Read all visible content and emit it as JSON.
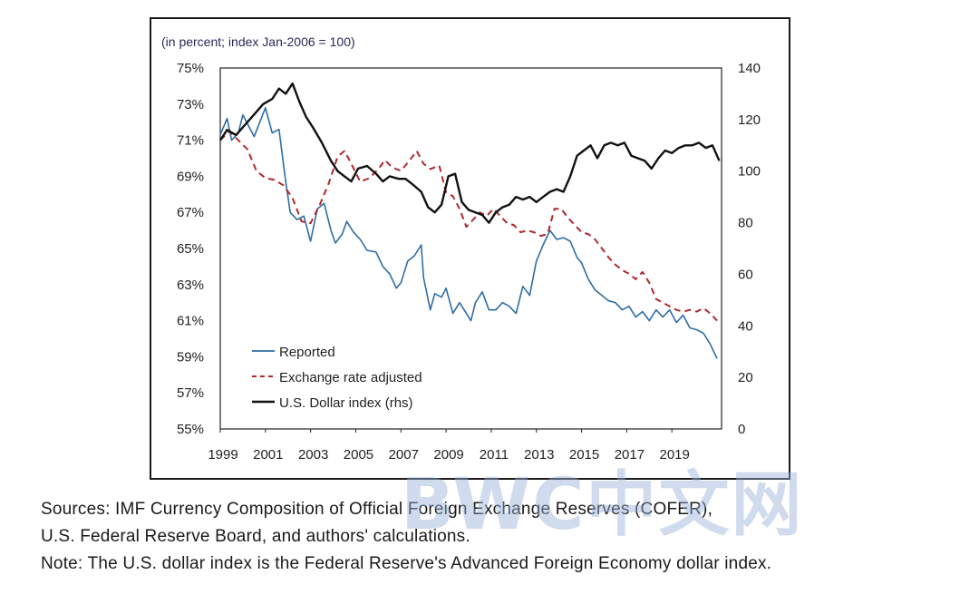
{
  "chart_data": {
    "type": "line",
    "unit_label": "(in percent; index Jan-2006 = 100)",
    "x_ticks": [
      "1999",
      "2001",
      "2003",
      "2005",
      "2007",
      "2009",
      "2011",
      "2013",
      "2015",
      "2017",
      "2019"
    ],
    "xlim": [
      1999,
      2021.2
    ],
    "left_axis": {
      "ticks": [
        "75%",
        "73%",
        "71%",
        "69%",
        "67%",
        "65%",
        "63%",
        "61%",
        "59%",
        "57%",
        "55%"
      ],
      "ylim": [
        55,
        75
      ]
    },
    "right_axis": {
      "ticks": [
        "140",
        "120",
        "100",
        "80",
        "60",
        "40",
        "20",
        "0"
      ],
      "ylim": [
        0,
        140
      ]
    },
    "series": [
      {
        "name": "Reported",
        "axis": "left",
        "color": "#2e6da4",
        "dash": "",
        "x": [
          1999.0,
          1999.3,
          1999.5,
          1999.8,
          2000.0,
          2000.5,
          2001.0,
          2001.3,
          2001.6,
          2001.9,
          2002.1,
          2002.4,
          2002.7,
          2003.0,
          2003.3,
          2003.6,
          2003.9,
          2004.1,
          2004.4,
          2004.6,
          2004.9,
          2005.2,
          2005.5,
          2005.9,
          2006.2,
          2006.5,
          2006.8,
          2007.0,
          2007.3,
          2007.6,
          2007.9,
          2008.0,
          2008.3,
          2008.5,
          2008.8,
          2009.0,
          2009.3,
          2009.6,
          2009.8,
          2010.1,
          2010.3,
          2010.6,
          2010.9,
          2011.2,
          2011.5,
          2011.8,
          2012.1,
          2012.4,
          2012.7,
          2013.0,
          2013.3,
          2013.6,
          2013.9,
          2014.2,
          2014.5,
          2014.8,
          2015.0,
          2015.3,
          2015.6,
          2015.9,
          2016.2,
          2016.5,
          2016.8,
          2017.1,
          2017.4,
          2017.7,
          2018.0,
          2018.3,
          2018.6,
          2018.9,
          2019.2,
          2019.5,
          2019.8,
          2020.1,
          2020.4,
          2020.7,
          2021.0
        ],
        "y": [
          71.3,
          72.2,
          71.0,
          71.4,
          72.4,
          71.2,
          72.8,
          71.4,
          71.6,
          68.7,
          67.0,
          66.6,
          66.8,
          65.4,
          67.2,
          67.5,
          66.0,
          65.3,
          65.8,
          66.5,
          65.9,
          65.5,
          64.9,
          64.8,
          64.0,
          63.6,
          62.8,
          63.1,
          64.3,
          64.6,
          65.2,
          63.4,
          61.6,
          62.5,
          62.3,
          62.8,
          61.4,
          62.0,
          61.6,
          61.0,
          62.0,
          62.6,
          61.6,
          61.6,
          62.0,
          61.8,
          61.4,
          62.9,
          62.4,
          64.3,
          65.2,
          66.0,
          65.5,
          65.6,
          65.4,
          64.5,
          64.2,
          63.3,
          62.7,
          62.4,
          62.1,
          62.0,
          61.6,
          61.8,
          61.2,
          61.5,
          61.0,
          61.6,
          61.2,
          61.6,
          60.9,
          61.3,
          60.6,
          60.5,
          60.3,
          59.7,
          58.9
        ]
      },
      {
        "name": "Exchange rate adjusted",
        "axis": "left",
        "color": "#b0282b",
        "dash": "7 5",
        "x": [
          1999.0,
          1999.4,
          1999.8,
          2000.2,
          2000.6,
          2001.0,
          2001.4,
          2001.8,
          2002.2,
          2002.6,
          2003.0,
          2003.4,
          2003.8,
          2004.2,
          2004.5,
          2004.8,
          2005.2,
          2005.6,
          2006.0,
          2006.3,
          2006.6,
          2007.0,
          2007.4,
          2007.7,
          2008.0,
          2008.3,
          2008.7,
          2009.0,
          2009.3,
          2009.6,
          2009.9,
          2010.2,
          2010.5,
          2010.8,
          2011.1,
          2011.4,
          2011.7,
          2012.0,
          2012.3,
          2012.6,
          2012.9,
          2013.2,
          2013.5,
          2013.8,
          2014.1,
          2014.4,
          2014.7,
          2015.0,
          2015.3,
          2015.6,
          2015.9,
          2016.2,
          2016.5,
          2016.8,
          2017.1,
          2017.4,
          2017.7,
          2018.0,
          2018.3,
          2018.6,
          2018.9,
          2019.2,
          2019.5,
          2019.8,
          2020.1,
          2020.4,
          2020.7,
          2021.0
        ],
        "y": [
          71.0,
          71.5,
          71.0,
          70.5,
          69.3,
          68.9,
          68.8,
          68.5,
          67.8,
          66.5,
          66.4,
          67.4,
          68.6,
          70.1,
          70.4,
          69.7,
          68.7,
          68.9,
          69.4,
          69.9,
          69.5,
          69.3,
          69.9,
          70.4,
          69.7,
          69.4,
          69.6,
          68.1,
          67.9,
          67.2,
          66.2,
          66.6,
          67.0,
          66.8,
          67.2,
          66.8,
          66.4,
          66.3,
          65.9,
          66.0,
          65.9,
          65.7,
          65.8,
          67.2,
          67.2,
          66.7,
          66.3,
          65.9,
          65.8,
          65.5,
          65.0,
          64.5,
          64.1,
          63.8,
          63.6,
          63.3,
          63.7,
          63.1,
          62.2,
          62.0,
          61.8,
          61.6,
          61.5,
          61.6,
          61.5,
          61.7,
          61.4,
          61.0
        ]
      },
      {
        "name": "U.S. Dollar index (rhs)",
        "axis": "right",
        "color": "#111111",
        "dash": "",
        "x": [
          1999.0,
          1999.3,
          1999.7,
          2000.1,
          2000.5,
          2000.9,
          2001.3,
          2001.6,
          2001.9,
          2002.2,
          2002.5,
          2002.8,
          2003.1,
          2003.5,
          2003.9,
          2004.2,
          2004.5,
          2004.8,
          2005.1,
          2005.5,
          2005.9,
          2006.2,
          2006.5,
          2006.9,
          2007.2,
          2007.5,
          2007.9,
          2008.2,
          2008.5,
          2008.8,
          2009.1,
          2009.4,
          2009.7,
          2010.0,
          2010.3,
          2010.6,
          2010.9,
          2011.2,
          2011.5,
          2011.8,
          2012.1,
          2012.4,
          2012.7,
          2013.0,
          2013.3,
          2013.6,
          2013.9,
          2014.2,
          2014.5,
          2014.8,
          2015.1,
          2015.4,
          2015.7,
          2016.0,
          2016.3,
          2016.6,
          2016.9,
          2017.2,
          2017.5,
          2017.8,
          2018.1,
          2018.4,
          2018.7,
          2019.0,
          2019.3,
          2019.6,
          2019.9,
          2020.2,
          2020.5,
          2020.8,
          2021.1
        ],
        "y": [
          112,
          116,
          114,
          118,
          122,
          126,
          128,
          132,
          130,
          134,
          127,
          121,
          117,
          111,
          104,
          100,
          98,
          96,
          101,
          102,
          99,
          96,
          98,
          97,
          97,
          95,
          92,
          86,
          84,
          87,
          98,
          99,
          88,
          85,
          84,
          83,
          80,
          84,
          86,
          87,
          90,
          89,
          90,
          88,
          90,
          92,
          93,
          92,
          98,
          106,
          108,
          110,
          105,
          110,
          111,
          110,
          111,
          106,
          105,
          104,
          101,
          105,
          108,
          107,
          109,
          110,
          110,
          111,
          109,
          110,
          104
        ]
      }
    ],
    "legend": {
      "placement": "lower-left"
    }
  },
  "notes": {
    "sources_line1": "Sources: IMF Currency Composition of Official Foreign Exchange Reserves (COFER),",
    "sources_line2": "U.S. Federal Reserve Board, and authors' calculations.",
    "note_line": "Note: The U.S. dollar index is the Federal Reserve's Advanced Foreign Economy dollar index."
  },
  "watermark": "BWC中文网"
}
